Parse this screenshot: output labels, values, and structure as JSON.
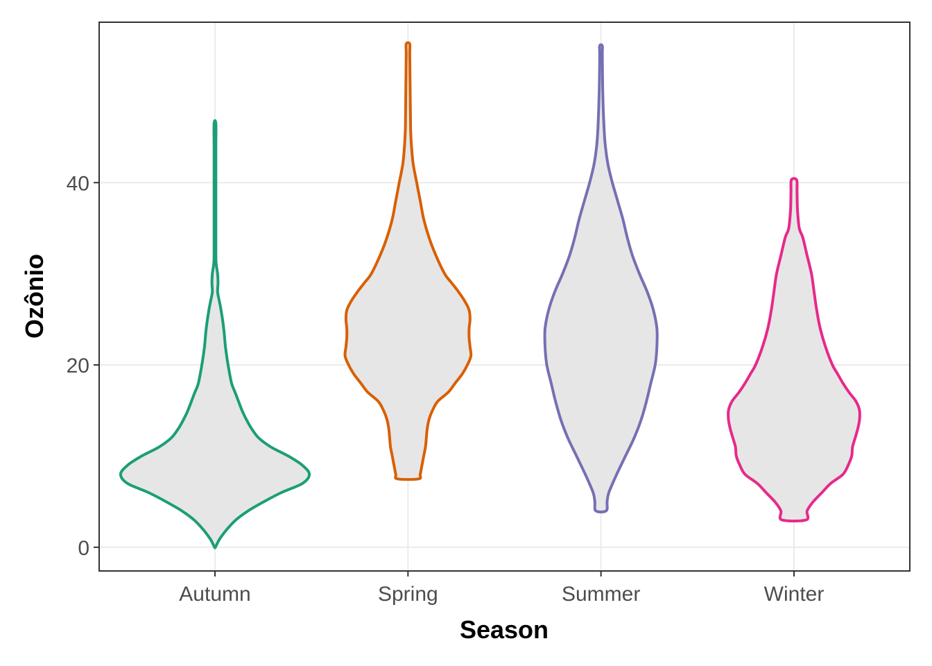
{
  "chart_data": {
    "type": "violin",
    "xlabel": "Season",
    "ylabel": "Ozônio",
    "ylim": [
      -2.6,
      57.6
    ],
    "yticks": [
      0,
      20,
      40
    ],
    "ytick_labels": [
      "0",
      "20",
      "40"
    ],
    "categories": [
      "Autumn",
      "Spring",
      "Summer",
      "Winter"
    ],
    "grid": true,
    "legend": "none",
    "fill_color": "#e6e6e6",
    "series": [
      {
        "category": "Autumn",
        "color": "#1b9e77",
        "profile": [
          [
            0,
            0.5
          ],
          [
            0.5,
            3
          ],
          [
            1,
            6
          ],
          [
            2,
            14
          ],
          [
            3,
            24
          ],
          [
            4,
            38
          ],
          [
            5,
            56
          ],
          [
            6,
            76
          ],
          [
            7,
            100
          ],
          [
            8,
            108
          ],
          [
            9,
            100
          ],
          [
            10,
            84
          ],
          [
            11,
            64
          ],
          [
            12,
            50
          ],
          [
            13,
            42
          ],
          [
            14,
            36
          ],
          [
            15,
            31
          ],
          [
            16,
            27
          ],
          [
            17,
            23
          ],
          [
            18,
            19
          ],
          [
            20,
            15
          ],
          [
            22,
            12
          ],
          [
            24,
            10
          ],
          [
            26,
            7
          ],
          [
            27,
            5
          ],
          [
            28,
            3
          ],
          [
            29,
            3.5
          ],
          [
            30,
            3
          ],
          [
            31,
            1.5
          ],
          [
            32,
            1
          ],
          [
            36,
            1
          ],
          [
            40,
            1
          ],
          [
            44,
            1
          ],
          [
            46.5,
            1
          ]
        ]
      },
      {
        "category": "Spring",
        "color": "#d95f02",
        "profile": [
          [
            7.5,
            12
          ],
          [
            8,
            14
          ],
          [
            9,
            16
          ],
          [
            10,
            18
          ],
          [
            11,
            20
          ],
          [
            12,
            21
          ],
          [
            13,
            22
          ],
          [
            14,
            24
          ],
          [
            15,
            28
          ],
          [
            16,
            34
          ],
          [
            17,
            46
          ],
          [
            18,
            54
          ],
          [
            19,
            62
          ],
          [
            20,
            68
          ],
          [
            21,
            72
          ],
          [
            22,
            71
          ],
          [
            23,
            70
          ],
          [
            24,
            70
          ],
          [
            25,
            71
          ],
          [
            26,
            70
          ],
          [
            27,
            65
          ],
          [
            28,
            58
          ],
          [
            29,
            50
          ],
          [
            30,
            42
          ],
          [
            32,
            32
          ],
          [
            34,
            24
          ],
          [
            36,
            18
          ],
          [
            38,
            14
          ],
          [
            40,
            10
          ],
          [
            42,
            6
          ],
          [
            44,
            4
          ],
          [
            46,
            3
          ],
          [
            50,
            2.5
          ],
          [
            54,
            2
          ],
          [
            55.2,
            2
          ]
        ]
      },
      {
        "category": "Summer",
        "color": "#7570b3",
        "profile": [
          [
            4,
            6
          ],
          [
            5,
            7
          ],
          [
            6,
            9
          ],
          [
            8,
            18
          ],
          [
            10,
            28
          ],
          [
            12,
            38
          ],
          [
            14,
            46
          ],
          [
            16,
            52
          ],
          [
            18,
            57
          ],
          [
            20,
            62
          ],
          [
            22,
            64
          ],
          [
            24,
            64
          ],
          [
            26,
            60
          ],
          [
            28,
            53
          ],
          [
            30,
            44
          ],
          [
            32,
            36
          ],
          [
            34,
            30
          ],
          [
            36,
            25
          ],
          [
            38,
            19
          ],
          [
            40,
            13
          ],
          [
            42,
            8
          ],
          [
            44,
            5
          ],
          [
            46,
            3.5
          ],
          [
            50,
            2
          ],
          [
            54,
            1.5
          ],
          [
            55,
            1.5
          ]
        ]
      },
      {
        "category": "Winter",
        "color": "#e7298a",
        "profile": [
          [
            3,
            14
          ],
          [
            4,
            15
          ],
          [
            5,
            22
          ],
          [
            6,
            32
          ],
          [
            7,
            42
          ],
          [
            8,
            56
          ],
          [
            9,
            62
          ],
          [
            10,
            66
          ],
          [
            11,
            67
          ],
          [
            12,
            70
          ],
          [
            13,
            73
          ],
          [
            14,
            75
          ],
          [
            15,
            75
          ],
          [
            16,
            71
          ],
          [
            17,
            63
          ],
          [
            18,
            56
          ],
          [
            19,
            50
          ],
          [
            20,
            44
          ],
          [
            22,
            36
          ],
          [
            24,
            30
          ],
          [
            26,
            26
          ],
          [
            28,
            23
          ],
          [
            30,
            20
          ],
          [
            32,
            15
          ],
          [
            34,
            10
          ],
          [
            35,
            6
          ],
          [
            37,
            4
          ],
          [
            39,
            3.5
          ],
          [
            40.3,
            3
          ]
        ]
      }
    ]
  }
}
